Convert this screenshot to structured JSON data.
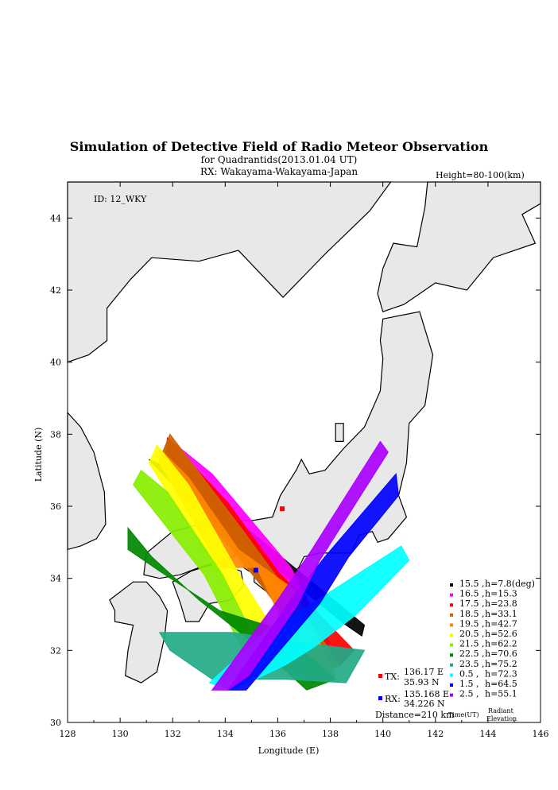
{
  "chart_data": {
    "type": "scatter",
    "title": "Simulation of Detective Field of Radio Meteor Observation",
    "subtitle": "for Quadrantids(2013.01.04 UT)",
    "rx_line": "RX: Wakayama-Wakayama-Japan",
    "height_note": "Height=80-100(km)",
    "id_label": "ID: 12_WKY",
    "xlabel": "Longitude (E)",
    "ylabel": "Latitude (N)",
    "xlim": [
      128,
      146
    ],
    "ylim": [
      30,
      45
    ],
    "xticks": [
      128,
      130,
      132,
      134,
      136,
      138,
      140,
      142,
      144,
      146
    ],
    "yticks": [
      30,
      32,
      34,
      36,
      38,
      40,
      42,
      44
    ],
    "tx": {
      "label": "TX:",
      "lon": 136.17,
      "lat": 35.93,
      "lon_text": "136.17 E",
      "lat_text": "35.93 N",
      "color": "#ff0000"
    },
    "rx": {
      "label": "RX:",
      "lon": 135.168,
      "lat": 34.226,
      "lon_text": "135.168 E",
      "lat_text": "34.226 N",
      "color": "#0000ff"
    },
    "distance": "Distance=210 km",
    "legend_footer": {
      "time": "Time(UT)",
      "radiant": "Radiant",
      "elevation": "Elevation"
    },
    "series": [
      {
        "time": "15.5",
        "h": "h=7.8(deg)",
        "color": "#000000",
        "band": [
          [
            131.1,
            37.3
          ],
          [
            132.3,
            36.9
          ],
          [
            139.3,
            32.7
          ],
          [
            139.2,
            32.4
          ],
          [
            138.6,
            32.7
          ],
          [
            132.0,
            36.6
          ]
        ]
      },
      {
        "time": "16.5",
        "h": "h=15.3",
        "color": "#ff00ff",
        "band": [
          [
            131.8,
            37.9
          ],
          [
            133.5,
            36.9
          ],
          [
            136.5,
            34.3
          ],
          [
            138.0,
            32.2
          ],
          [
            137.2,
            32.0
          ],
          [
            136.4,
            32.9
          ],
          [
            134.5,
            35.2
          ],
          [
            132.5,
            37.0
          ]
        ]
      },
      {
        "time": "17.5",
        "h": "h=23.8",
        "color": "#ff0000",
        "band": [
          [
            131.8,
            37.9
          ],
          [
            134.1,
            36.1
          ],
          [
            136.0,
            34.2
          ],
          [
            138.9,
            32.0
          ],
          [
            138.4,
            31.6
          ],
          [
            136.3,
            32.9
          ],
          [
            134.2,
            35.0
          ],
          [
            131.7,
            37.3
          ]
        ]
      },
      {
        "time": "18.5",
        "h": "h=33.1",
        "color": "#cc6600",
        "band": [
          [
            131.9,
            38.0
          ],
          [
            134.7,
            35.3
          ],
          [
            138.4,
            31.6
          ],
          [
            137.8,
            31.4
          ],
          [
            135.6,
            33.6
          ],
          [
            133.8,
            35.2
          ],
          [
            131.5,
            37.3
          ]
        ]
      },
      {
        "time": "19.5",
        "h": "h=42.7",
        "color": "#ff8800",
        "band": [
          [
            131.5,
            37.6
          ],
          [
            132.6,
            36.8
          ],
          [
            134.5,
            34.8
          ],
          [
            136.6,
            33.7
          ],
          [
            138.2,
            31.3
          ],
          [
            137.3,
            31.1
          ],
          [
            135.2,
            34.3
          ],
          [
            133.8,
            34.3
          ],
          [
            131.5,
            37.2
          ]
        ]
      },
      {
        "time": "20.5",
        "h": "h=52.6",
        "color": "#ffff00",
        "band": [
          [
            131.4,
            37.7
          ],
          [
            132.6,
            36.6
          ],
          [
            134.7,
            33.9
          ],
          [
            136.0,
            32.4
          ],
          [
            136.9,
            31.5
          ],
          [
            136.2,
            31.4
          ],
          [
            135.5,
            32.1
          ],
          [
            134.1,
            33.7
          ],
          [
            131.1,
            37.2
          ]
        ]
      },
      {
        "time": "21.5",
        "h": "h=62.2",
        "color": "#88ee00",
        "band": [
          [
            130.8,
            37.0
          ],
          [
            131.8,
            36.4
          ],
          [
            133.9,
            34.1
          ],
          [
            135.7,
            31.5
          ],
          [
            135.1,
            31.4
          ],
          [
            133.2,
            34.1
          ],
          [
            130.5,
            36.6
          ]
        ]
      },
      {
        "time": "22.5",
        "h": "h=70.6",
        "color": "#008800",
        "band": [
          [
            130.3,
            35.4
          ],
          [
            131.2,
            34.6
          ],
          [
            133.0,
            33.4
          ],
          [
            135.6,
            31.9
          ],
          [
            137.1,
            30.9
          ],
          [
            138.2,
            31.2
          ],
          [
            136.0,
            32.6
          ],
          [
            133.8,
            33.1
          ],
          [
            131.5,
            34.2
          ],
          [
            130.3,
            34.8
          ]
        ]
      },
      {
        "time": "23.5",
        "h": "h=75.2",
        "color": "#22aa88",
        "band": [
          [
            131.5,
            32.5
          ],
          [
            134.3,
            32.5
          ],
          [
            137.0,
            32.2
          ],
          [
            139.3,
            32.0
          ],
          [
            138.6,
            31.1
          ],
          [
            136.3,
            31.2
          ],
          [
            133.5,
            31.2
          ],
          [
            131.9,
            32.0
          ]
        ]
      },
      {
        "time": "0.5",
        "h": "h=72.3",
        "color": "#00ffff",
        "band": [
          [
            133.4,
            31.1
          ],
          [
            135.8,
            32.7
          ],
          [
            137.3,
            33.3
          ],
          [
            140.7,
            34.9
          ],
          [
            141.0,
            34.5
          ],
          [
            139.0,
            33.0
          ],
          [
            137.4,
            32.1
          ],
          [
            136.3,
            31.6
          ],
          [
            134.3,
            30.9
          ]
        ]
      },
      {
        "time": "1.5",
        "h": "h=64.5",
        "color": "#0000ff",
        "band": [
          [
            134.1,
            30.9
          ],
          [
            136.5,
            33.4
          ],
          [
            137.8,
            34.6
          ],
          [
            140.5,
            36.9
          ],
          [
            140.6,
            36.3
          ],
          [
            138.7,
            34.6
          ],
          [
            137.6,
            33.3
          ],
          [
            135.5,
            31.5
          ],
          [
            134.8,
            30.9
          ]
        ]
      },
      {
        "time": "2.5",
        "h": "h=55.1",
        "color": "#aa00ff",
        "band": [
          [
            133.5,
            30.9
          ],
          [
            136.0,
            33.4
          ],
          [
            137.3,
            34.8
          ],
          [
            139.9,
            37.8
          ],
          [
            140.2,
            37.5
          ],
          [
            137.6,
            34.5
          ],
          [
            136.7,
            33.2
          ],
          [
            134.9,
            31.3
          ],
          [
            134.1,
            30.9
          ]
        ]
      }
    ]
  }
}
